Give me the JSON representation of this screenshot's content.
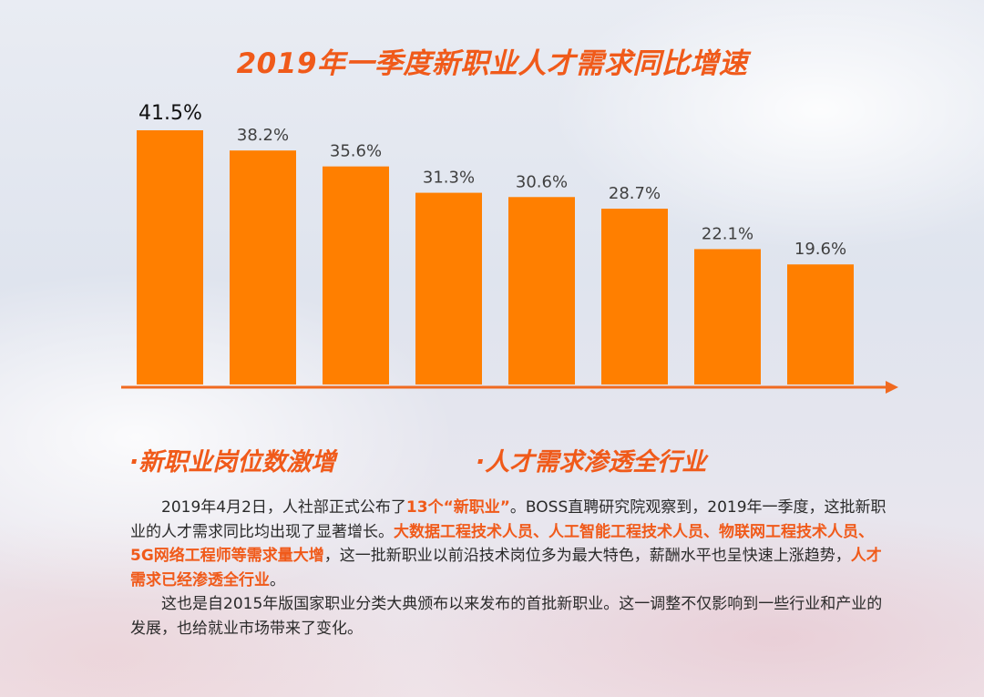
{
  "title": "2019年一季度新职业人才需求同比增速",
  "chart_data": {
    "type": "bar",
    "title": "2019年一季度新职业人才需求同比增速",
    "categories": [],
    "values": [
      41.5,
      38.2,
      35.6,
      31.3,
      30.6,
      28.7,
      22.1,
      19.6
    ],
    "labels": [
      "41.5%",
      "38.2%",
      "35.6%",
      "31.3%",
      "30.6%",
      "28.7%",
      "22.1%",
      "19.6%"
    ],
    "unit": "%",
    "xlabel": "",
    "ylabel": "",
    "ylim": [
      0,
      41.5
    ],
    "grid": false,
    "colors": {
      "bar": "#ff7f00",
      "axis": "#f06a20"
    }
  },
  "headings": {
    "left": "·新职业岗位数激增",
    "right": "·人才需求渗透全行业"
  },
  "paragraph1": {
    "t1": "2019年4月2日，人社部正式公布了",
    "h1": "13个“新职业”",
    "t2": "。BOSS直聘研究院观察到，2019年一季度，这批新职业的人才需求同比均出现了显著增长。",
    "h2": "大数据工程技术人员、人工智能工程技术人员、物联网工程技术人员、5G网络工程师等需求量大增",
    "t3": "，这一批新职业以前沿技术岗位多为最大特色，薪酬水平也呈快速上涨趋势，",
    "h3": "人才需求已经渗透全行业",
    "t4": "。"
  },
  "paragraph2": "这也是自2015年版国家职业分类大典颁布以来发布的首批新职业。这一调整不仅影响到一些行业和产业的发展，也给就业市场带来了变化。",
  "colors": {
    "accent": "#f05a1a",
    "text": "#2a2a2a"
  }
}
